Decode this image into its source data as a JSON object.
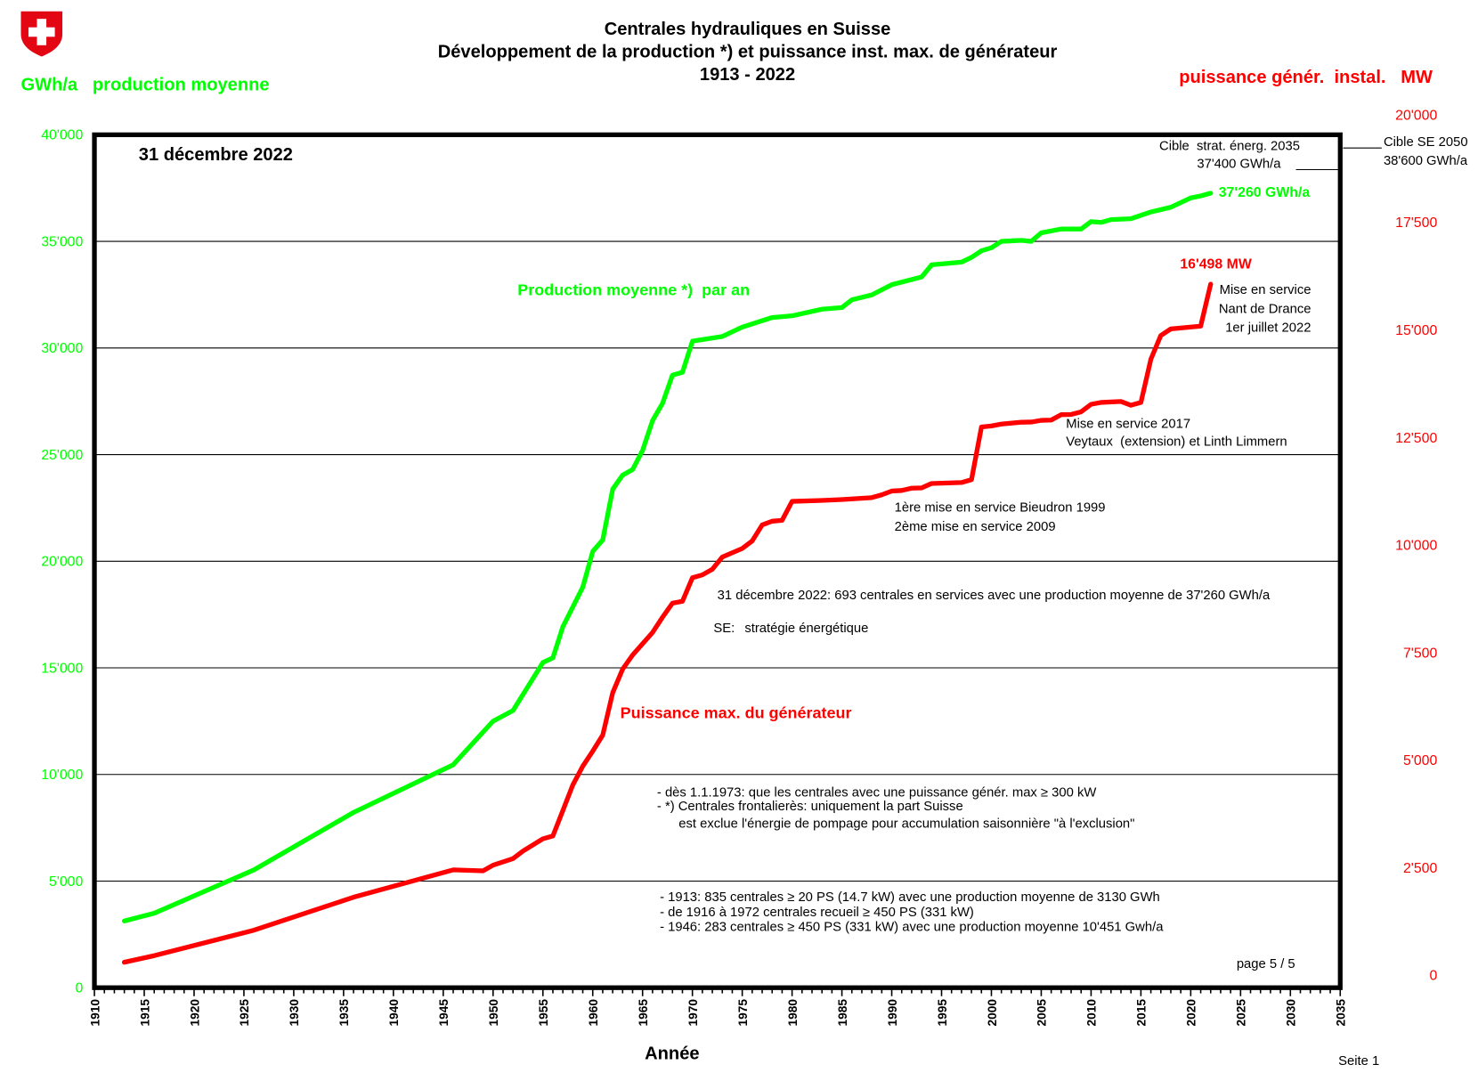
{
  "header": {
    "title_lines": [
      "Centrales hydrauliques en Suisse",
      "Développement de la production *) et puissance inst. max. de générateur",
      "1913 - 2022"
    ],
    "left_unit_label": "GWh/a   production moyenne",
    "right_unit_label": "puissance génér.  instal.   MW",
    "date_label": "31 décembre 2022"
  },
  "chart_data": {
    "type": "line",
    "title": "Centrales hydrauliques en Suisse — Développement de la production *) et puissance inst. max. de générateur 1913 - 2022",
    "xlabel": "Année",
    "ylabel": "GWh/a   production moyenne",
    "y2label": "puissance génér.  instal.   MW",
    "xlim": [
      1910,
      2035
    ],
    "ylim": [
      0,
      40000
    ],
    "y2lim": [
      0,
      20000
    ],
    "grid": true,
    "x_ticks": [
      "1910",
      "1915",
      "1920",
      "1925",
      "1930",
      "1935",
      "1940",
      "1945",
      "1950",
      "1955",
      "1960",
      "1965",
      "1970",
      "1975",
      "1980",
      "1985",
      "1990",
      "1995",
      "2000",
      "2005",
      "2010",
      "2015",
      "2020",
      "2025",
      "2030",
      "2035"
    ],
    "y_ticks": [
      "0",
      "5'000",
      "10'000",
      "15'000",
      "20'000",
      "25'000",
      "30'000",
      "35'000",
      "40'000"
    ],
    "y2_ticks": [
      "0",
      "2'500",
      "5'000",
      "7'500",
      "10'000",
      "12'500",
      "15'000",
      "17'500",
      "20'000"
    ],
    "series": [
      {
        "name": "Production moyenne *)  par an",
        "axis": "left",
        "color": "#00ff00",
        "x": [
          1913,
          1916,
          1926,
          1936,
          1946,
          1950,
          1952,
          1955,
          1956,
          1957,
          1959,
          1960,
          1961,
          1962,
          1963,
          1964,
          1965,
          1966,
          1967,
          1968,
          1969,
          1970,
          1973,
          1975,
          1978,
          1980,
          1983,
          1985,
          1986,
          1988,
          1990,
          1993,
          1994,
          1997,
          1998,
          1999,
          2000,
          2001,
          2003,
          2004,
          2005,
          2007,
          2009,
          2010,
          2011,
          2012,
          2014,
          2016,
          2018,
          2020,
          2021,
          2022
        ],
        "y": [
          3130,
          3490,
          5525,
          8220,
          10451,
          12500,
          13000,
          15250,
          15470,
          16930,
          18780,
          20460,
          21000,
          23380,
          24040,
          24300,
          25200,
          26600,
          27400,
          28730,
          28860,
          30320,
          30540,
          30980,
          31430,
          31510,
          31820,
          31900,
          32260,
          32490,
          32970,
          33330,
          33900,
          34030,
          34250,
          34560,
          34700,
          35000,
          35050,
          35000,
          35400,
          35580,
          35580,
          35930,
          35890,
          36020,
          36060,
          36380,
          36600,
          37040,
          37130,
          37260
        ]
      },
      {
        "name": "Puissance max. du générateur",
        "axis": "right",
        "color": "#ff0000",
        "x": [
          1913,
          1916,
          1926,
          1936,
          1946,
          1949,
          1950,
          1952,
          1953,
          1955,
          1956,
          1957,
          1958,
          1959,
          1960,
          1961,
          1962,
          1963,
          1964,
          1966,
          1967,
          1968,
          1969,
          1970,
          1971,
          1972,
          1973,
          1975,
          1976,
          1977,
          1978,
          1979,
          1980,
          1983,
          1985,
          1988,
          1989,
          1990,
          1991,
          1992,
          1993,
          1994,
          1997,
          1998,
          1999,
          2000,
          2001,
          2003,
          2004,
          2005,
          2006,
          2007,
          2008,
          2009,
          2010,
          2011,
          2013,
          2014,
          2015,
          2016,
          2017,
          2018,
          2021,
          2022
        ],
        "y": [
          597,
          751,
          1348,
          2122,
          2762,
          2740,
          2873,
          3027,
          3204,
          3492,
          3558,
          4155,
          4751,
          5193,
          5547,
          5923,
          6917,
          7470,
          7801,
          8331,
          8685,
          9017,
          9061,
          9613,
          9680,
          9812,
          10100,
          10299,
          10475,
          10851,
          10939,
          10960,
          11403,
          11425,
          11447,
          11492,
          11558,
          11646,
          11660,
          11713,
          11720,
          11823,
          11845,
          11911,
          13149,
          13171,
          13215,
          13260,
          13265,
          13304,
          13310,
          13436,
          13440,
          13503,
          13680,
          13724,
          13746,
          13657,
          13724,
          14740,
          15293,
          15448,
          15514,
          16498
        ]
      }
    ]
  },
  "annotations": {
    "target_2035_line1": "Cible  strat. énerg. 2035",
    "target_2035_line2": "37'400 GWh/a",
    "target_2050_line1": "Cible SE 2050",
    "target_2050_line2": "38'600 GWh/a",
    "green_end_value": "37'260 GWh/a",
    "red_end_value": "16'498 MW",
    "nant_line1": "Mise en service",
    "nant_line2": "Nant de Drance",
    "nant_line3": "1er juillet 2022",
    "green_series_label": "Production moyenne *)  par an",
    "red_series_label": "Puissance max. du générateur",
    "mes2017_line1": "Mise en service 2017",
    "mes2017_line2": "Veytaux  (extension) et Linth Limmern",
    "bieudron_line1": "1ère mise en service Bieudron 1999",
    "bieudron_line2": "2ème mise en service 2009",
    "summary": "31 décembre 2022: 693 centrales en services avec une production moyenne de 37'260 GWh/a",
    "se_prefix": "SE:",
    "se_text": "stratégie énergétique",
    "note1": "-  dès 1.1.1973: que les centrales avec une puissance génér. max ≥ 300 kW",
    "note2": "-  *) Centrales frontalierès: uniquement la part Suisse",
    "note3": "est exclue l'énergie de pompage pour accumulation saisonnière \"à l'exclusion\"",
    "note4": "-  1913:  835 centrales ≥ 20 PS (14.7 kW)  avec une production moyenne de 3130 GWh",
    "note5": "-  de 1916 à 1972 centrales recueil ≥ 450 PS (331 kW)",
    "note6": "-  1946: 283 centrales ≥ 450 PS (331 kW) avec une production moyenne 10'451 Gwh/a",
    "page_label": "page 5 / 5"
  },
  "footer": {
    "x_axis_title": "Année",
    "page_footer": "Seite 1"
  },
  "logo": {
    "icon": "swiss-shield-icon",
    "color": "#e30613"
  }
}
